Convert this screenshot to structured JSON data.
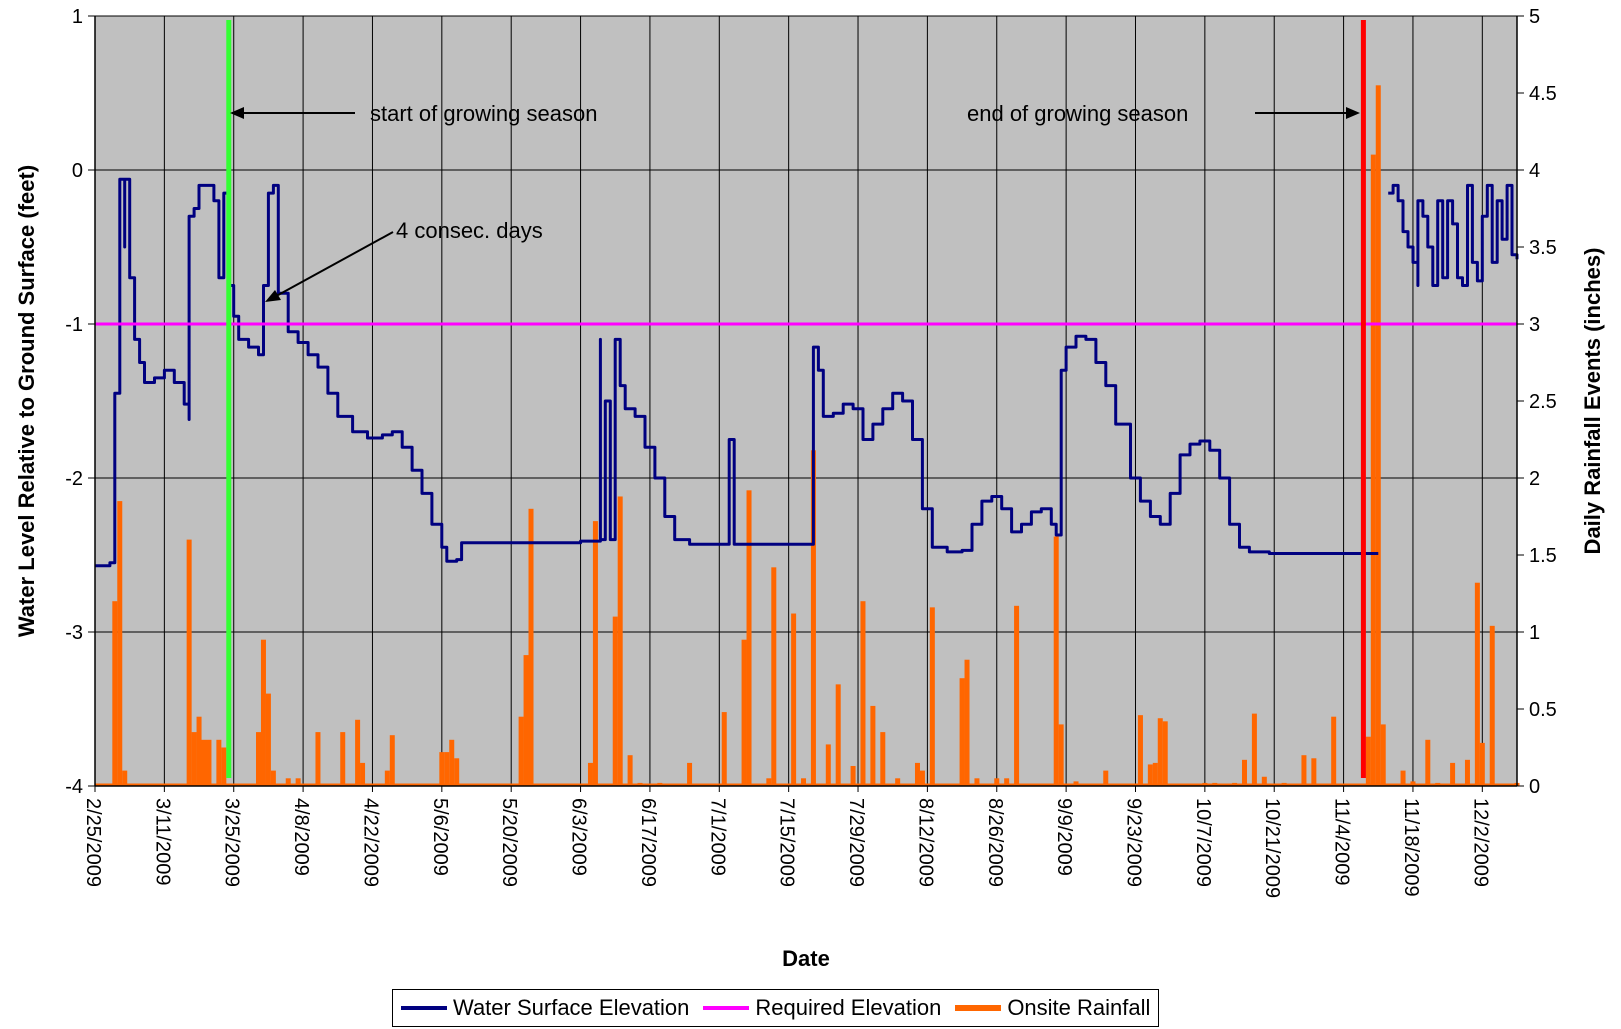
{
  "chart_data": {
    "type": "line",
    "xlabel": "Date",
    "ylabel_left": "Water Level Relative to Ground Surface (feet)",
    "ylabel_right": "Daily Rainfall Events (inches)",
    "x_range": [
      "2009-02-25",
      "2009-12-09"
    ],
    "ylim_left": [
      -4,
      1
    ],
    "ylim_right": [
      0,
      5
    ],
    "x_tick_labels": [
      "2/25/2009",
      "3/11/2009",
      "3/25/2009",
      "4/8/2009",
      "4/22/2009",
      "5/6/2009",
      "5/20/2009",
      "6/3/2009",
      "6/17/2009",
      "7/1/2009",
      "7/15/2009",
      "7/29/2009",
      "8/12/2009",
      "8/26/2009",
      "9/9/2009",
      "9/23/2009",
      "10/7/2009",
      "10/21/2009",
      "11/4/2009",
      "11/18/2009",
      "12/2/2009"
    ],
    "y_tick_labels_left": [
      "1",
      "0",
      "-1",
      "-2",
      "-3",
      "-4"
    ],
    "y_tick_labels_right": [
      "5",
      "4.5",
      "4",
      "3.5",
      "3",
      "2.5",
      "2",
      "1.5",
      "1",
      "0.5",
      "0"
    ],
    "grid": true,
    "plot_background": "#c0c0c0",
    "legend_position": "bottom",
    "series": [
      {
        "name": "Water Surface Elevation",
        "color": "#000080",
        "axis": "left",
        "points": [
          [
            "2009-02-25",
            -2.57
          ],
          [
            "2009-02-27",
            -2.57
          ],
          [
            "2009-02-28",
            -2.55
          ],
          [
            "2009-03-01",
            -1.45
          ],
          [
            "2009-03-02",
            -0.95
          ],
          [
            "2009-03-02",
            -0.06
          ],
          [
            "2009-03-03",
            -0.5
          ],
          [
            "2009-03-03",
            -0.06
          ],
          [
            "2009-03-04",
            -0.6
          ],
          [
            "2009-03-04",
            -0.7
          ],
          [
            "2009-03-05",
            -1.1
          ],
          [
            "2009-03-06",
            -1.25
          ],
          [
            "2009-03-07",
            -1.38
          ],
          [
            "2009-03-09",
            -1.35
          ],
          [
            "2009-03-11",
            -1.3
          ],
          [
            "2009-03-13",
            -1.38
          ],
          [
            "2009-03-15",
            -1.52
          ],
          [
            "2009-03-16",
            -1.62
          ],
          [
            "2009-03-16",
            -0.3
          ],
          [
            "2009-03-17",
            -0.25
          ],
          [
            "2009-03-18",
            -0.1
          ],
          [
            "2009-03-20",
            -0.1
          ],
          [
            "2009-03-21",
            -0.2
          ],
          [
            "2009-03-22",
            -0.7
          ],
          [
            "2009-03-23",
            -0.45
          ],
          [
            "2009-03-23",
            -0.15
          ],
          [
            "2009-03-24",
            -0.75
          ],
          [
            "2009-03-25",
            -0.95
          ],
          [
            "2009-03-26",
            -1.1
          ],
          [
            "2009-03-28",
            -1.15
          ],
          [
            "2009-03-30",
            -1.2
          ],
          [
            "2009-03-31",
            -0.75
          ],
          [
            "2009-04-01",
            -0.15
          ],
          [
            "2009-04-02",
            -0.1
          ],
          [
            "2009-04-03",
            -0.8
          ],
          [
            "2009-04-05",
            -1.05
          ],
          [
            "2009-04-07",
            -1.12
          ],
          [
            "2009-04-09",
            -1.2
          ],
          [
            "2009-04-11",
            -1.28
          ],
          [
            "2009-04-13",
            -1.45
          ],
          [
            "2009-04-15",
            -1.6
          ],
          [
            "2009-04-18",
            -1.7
          ],
          [
            "2009-04-21",
            -1.74
          ],
          [
            "2009-04-24",
            -1.72
          ],
          [
            "2009-04-26",
            -1.7
          ],
          [
            "2009-04-28",
            -1.8
          ],
          [
            "2009-04-30",
            -1.95
          ],
          [
            "2009-05-02",
            -2.1
          ],
          [
            "2009-05-04",
            -2.3
          ],
          [
            "2009-05-06",
            -2.45
          ],
          [
            "2009-05-07",
            -2.54
          ],
          [
            "2009-05-09",
            -2.53
          ],
          [
            "2009-05-10",
            -2.42
          ],
          [
            "2009-05-20",
            -2.42
          ],
          [
            "2009-06-03",
            -2.41
          ],
          [
            "2009-06-06",
            -2.41
          ],
          [
            "2009-06-07",
            -1.1
          ],
          [
            "2009-06-07",
            -2.4
          ],
          [
            "2009-06-08",
            -1.5
          ],
          [
            "2009-06-09",
            -2.4
          ],
          [
            "2009-06-10",
            -2.35
          ],
          [
            "2009-06-10",
            -1.1
          ],
          [
            "2009-06-11",
            -1.4
          ],
          [
            "2009-06-12",
            -1.55
          ],
          [
            "2009-06-14",
            -1.6
          ],
          [
            "2009-06-16",
            -1.8
          ],
          [
            "2009-06-18",
            -2.0
          ],
          [
            "2009-06-20",
            -2.25
          ],
          [
            "2009-06-22",
            -2.4
          ],
          [
            "2009-06-25",
            -2.43
          ],
          [
            "2009-07-03",
            -2.43
          ],
          [
            "2009-07-03",
            -1.75
          ],
          [
            "2009-07-04",
            -2.43
          ],
          [
            "2009-07-17",
            -2.43
          ],
          [
            "2009-07-20",
            -2.42
          ],
          [
            "2009-07-20",
            -1.15
          ],
          [
            "2009-07-21",
            -1.3
          ],
          [
            "2009-07-22",
            -1.6
          ],
          [
            "2009-07-24",
            -1.58
          ],
          [
            "2009-07-26",
            -1.52
          ],
          [
            "2009-07-28",
            -1.55
          ],
          [
            "2009-07-30",
            -1.75
          ],
          [
            "2009-08-01",
            -1.65
          ],
          [
            "2009-08-03",
            -1.55
          ],
          [
            "2009-08-05",
            -1.45
          ],
          [
            "2009-08-07",
            -1.5
          ],
          [
            "2009-08-09",
            -1.75
          ],
          [
            "2009-08-11",
            -2.2
          ],
          [
            "2009-08-13",
            -2.45
          ],
          [
            "2009-08-16",
            -2.48
          ],
          [
            "2009-08-19",
            -2.47
          ],
          [
            "2009-08-21",
            -2.3
          ],
          [
            "2009-08-23",
            -2.15
          ],
          [
            "2009-08-25",
            -2.12
          ],
          [
            "2009-08-27",
            -2.2
          ],
          [
            "2009-08-29",
            -2.35
          ],
          [
            "2009-08-31",
            -2.3
          ],
          [
            "2009-09-02",
            -2.22
          ],
          [
            "2009-09-04",
            -2.2
          ],
          [
            "2009-09-06",
            -2.3
          ],
          [
            "2009-09-07",
            -2.37
          ],
          [
            "2009-09-08",
            -2.3
          ],
          [
            "2009-09-08",
            -1.3
          ],
          [
            "2009-09-09",
            -1.15
          ],
          [
            "2009-09-11",
            -1.08
          ],
          [
            "2009-09-13",
            -1.1
          ],
          [
            "2009-09-15",
            -1.25
          ],
          [
            "2009-09-17",
            -1.4
          ],
          [
            "2009-09-19",
            -1.65
          ],
          [
            "2009-09-22",
            -2.0
          ],
          [
            "2009-09-24",
            -2.15
          ],
          [
            "2009-09-26",
            -2.25
          ],
          [
            "2009-09-28",
            -2.3
          ],
          [
            "2009-09-30",
            -2.1
          ],
          [
            "2009-10-02",
            -1.85
          ],
          [
            "2009-10-04",
            -1.78
          ],
          [
            "2009-10-06",
            -1.76
          ],
          [
            "2009-10-08",
            -1.82
          ],
          [
            "2009-10-10",
            -2.0
          ],
          [
            "2009-10-12",
            -2.3
          ],
          [
            "2009-10-14",
            -2.45
          ],
          [
            "2009-10-16",
            -2.48
          ],
          [
            "2009-10-20",
            -2.49
          ],
          [
            "2009-10-24",
            -2.49
          ],
          [
            "2009-10-28",
            -2.49
          ],
          [
            "2009-11-01",
            -2.49
          ],
          [
            "2009-11-05",
            -2.49
          ],
          [
            "2009-11-11",
            -2.49
          ]
        ]
      },
      {
        "name": "Water Surface Elevation",
        "color": "#000080",
        "axis": "left",
        "points": [
          [
            "2009-11-13",
            -0.15
          ],
          [
            "2009-11-14",
            -0.1
          ],
          [
            "2009-11-15",
            -0.2
          ],
          [
            "2009-11-16",
            -0.4
          ],
          [
            "2009-11-17",
            -0.5
          ],
          [
            "2009-11-18",
            -0.6
          ],
          [
            "2009-11-19",
            -0.75
          ],
          [
            "2009-11-19",
            -0.2
          ],
          [
            "2009-11-20",
            -0.3
          ],
          [
            "2009-11-21",
            -0.5
          ],
          [
            "2009-11-22",
            -0.75
          ],
          [
            "2009-11-23",
            -0.2
          ],
          [
            "2009-11-24",
            -0.7
          ],
          [
            "2009-11-25",
            -0.2
          ],
          [
            "2009-11-26",
            -0.35
          ],
          [
            "2009-11-27",
            -0.7
          ],
          [
            "2009-11-28",
            -0.75
          ],
          [
            "2009-11-29",
            -0.1
          ],
          [
            "2009-11-30",
            -0.6
          ],
          [
            "2009-12-01",
            -0.72
          ],
          [
            "2009-12-02",
            -0.3
          ],
          [
            "2009-12-03",
            -0.1
          ],
          [
            "2009-12-04",
            -0.6
          ],
          [
            "2009-12-05",
            -0.2
          ],
          [
            "2009-12-06",
            -0.45
          ],
          [
            "2009-12-07",
            -0.1
          ],
          [
            "2009-12-08",
            -0.55
          ],
          [
            "2009-12-09",
            -0.58
          ]
        ]
      },
      {
        "name": "Required Elevation",
        "color": "#ff00ff",
        "axis": "left",
        "points": [
          [
            "2009-02-25",
            -1
          ],
          [
            "2009-12-09",
            -1
          ]
        ]
      },
      {
        "name": "Onsite Rainfall",
        "color": "#ff6600",
        "axis": "right",
        "type": "bar",
        "points": [
          [
            "2009-03-01",
            1.2
          ],
          [
            "2009-03-02",
            1.85
          ],
          [
            "2009-03-03",
            0.1
          ],
          [
            "2009-03-16",
            1.6
          ],
          [
            "2009-03-17",
            0.35
          ],
          [
            "2009-03-18",
            0.45
          ],
          [
            "2009-03-19",
            0.3
          ],
          [
            "2009-03-20",
            0.3
          ],
          [
            "2009-03-22",
            0.3
          ],
          [
            "2009-03-23",
            0.25
          ],
          [
            "2009-03-30",
            0.35
          ],
          [
            "2009-03-31",
            0.95
          ],
          [
            "2009-04-01",
            0.6
          ],
          [
            "2009-04-02",
            0.1
          ],
          [
            "2009-04-05",
            0.05
          ],
          [
            "2009-04-07",
            0.05
          ],
          [
            "2009-04-11",
            0.35
          ],
          [
            "2009-04-16",
            0.35
          ],
          [
            "2009-04-19",
            0.43
          ],
          [
            "2009-04-20",
            0.15
          ],
          [
            "2009-04-25",
            0.1
          ],
          [
            "2009-04-26",
            0.33
          ],
          [
            "2009-05-06",
            0.22
          ],
          [
            "2009-05-07",
            0.22
          ],
          [
            "2009-05-08",
            0.3
          ],
          [
            "2009-05-09",
            0.18
          ],
          [
            "2009-05-22",
            0.45
          ],
          [
            "2009-05-23",
            0.85
          ],
          [
            "2009-05-24",
            1.8
          ],
          [
            "2009-06-05",
            0.15
          ],
          [
            "2009-06-06",
            1.72
          ],
          [
            "2009-06-10",
            1.1
          ],
          [
            "2009-06-11",
            1.88
          ],
          [
            "2009-06-13",
            0.2
          ],
          [
            "2009-06-15",
            0.02
          ],
          [
            "2009-06-19",
            0.02
          ],
          [
            "2009-06-25",
            0.15
          ],
          [
            "2009-07-02",
            0.48
          ],
          [
            "2009-07-06",
            0.95
          ],
          [
            "2009-07-07",
            1.92
          ],
          [
            "2009-07-11",
            0.05
          ],
          [
            "2009-07-12",
            1.42
          ],
          [
            "2009-07-16",
            1.12
          ],
          [
            "2009-07-18",
            0.05
          ],
          [
            "2009-07-20",
            2.18
          ],
          [
            "2009-07-23",
            0.27
          ],
          [
            "2009-07-25",
            0.66
          ],
          [
            "2009-07-28",
            0.13
          ],
          [
            "2009-07-30",
            1.2
          ],
          [
            "2009-08-01",
            0.52
          ],
          [
            "2009-08-03",
            0.35
          ],
          [
            "2009-08-06",
            0.05
          ],
          [
            "2009-08-10",
            0.15
          ],
          [
            "2009-08-11",
            0.1
          ],
          [
            "2009-08-13",
            1.16
          ],
          [
            "2009-08-19",
            0.7
          ],
          [
            "2009-08-20",
            0.82
          ],
          [
            "2009-08-22",
            0.05
          ],
          [
            "2009-08-26",
            0.05
          ],
          [
            "2009-08-28",
            0.05
          ],
          [
            "2009-08-30",
            1.17
          ],
          [
            "2009-09-07",
            1.62
          ],
          [
            "2009-09-08",
            0.4
          ],
          [
            "2009-09-11",
            0.03
          ],
          [
            "2009-09-17",
            0.1
          ],
          [
            "2009-09-24",
            0.46
          ],
          [
            "2009-09-26",
            0.14
          ],
          [
            "2009-09-27",
            0.15
          ],
          [
            "2009-09-28",
            0.44
          ],
          [
            "2009-09-29",
            0.42
          ],
          [
            "2009-10-07",
            0.02
          ],
          [
            "2009-10-09",
            0.02
          ],
          [
            "2009-10-13",
            0.02
          ],
          [
            "2009-10-15",
            0.17
          ],
          [
            "2009-10-17",
            0.47
          ],
          [
            "2009-10-19",
            0.06
          ],
          [
            "2009-10-23",
            0.02
          ],
          [
            "2009-10-27",
            0.2
          ],
          [
            "2009-10-29",
            0.18
          ],
          [
            "2009-11-02",
            0.45
          ],
          [
            "2009-11-09",
            0.32
          ],
          [
            "2009-11-10",
            4.1
          ],
          [
            "2009-11-11",
            4.55
          ],
          [
            "2009-11-12",
            0.4
          ],
          [
            "2009-11-16",
            0.1
          ],
          [
            "2009-11-18",
            0.03
          ],
          [
            "2009-11-21",
            0.3
          ],
          [
            "2009-11-23",
            0.02
          ],
          [
            "2009-11-26",
            0.15
          ],
          [
            "2009-11-29",
            0.17
          ],
          [
            "2009-12-01",
            1.32
          ],
          [
            "2009-12-02",
            0.28
          ],
          [
            "2009-12-04",
            1.04
          ],
          [
            "2009-12-09",
            0.02
          ]
        ]
      }
    ],
    "markers": [
      {
        "name": "start of growing season",
        "date": "2009-03-24",
        "color": "#33ff33"
      },
      {
        "name": "end of growing season",
        "date": "2009-11-08",
        "color": "#ff0000"
      }
    ],
    "annotations": [
      {
        "text": "start of growing season",
        "y": 0.37
      },
      {
        "text": "end of growing season",
        "y": 0.37
      },
      {
        "text": "4 consec. days",
        "y": -0.39
      }
    ],
    "legend": [
      {
        "label": "Water Surface Elevation",
        "color": "#000080"
      },
      {
        "label": "Required Elevation",
        "color": "#ff00ff"
      },
      {
        "label": "Onsite Rainfall",
        "color": "#ff6600"
      }
    ]
  }
}
